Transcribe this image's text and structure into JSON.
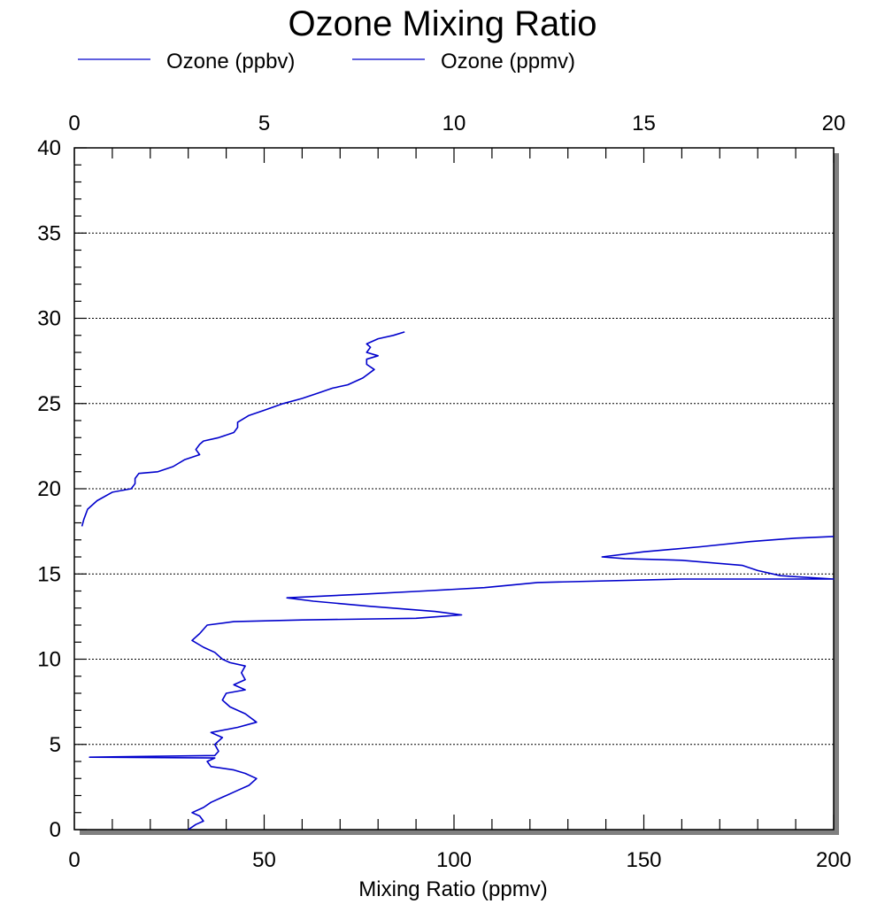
{
  "chart_data": {
    "type": "line",
    "title": "Ozone Mixing Ratio",
    "xlabel": "Mixing Ratio (ppmv)",
    "ylabel": "",
    "legend_placement": "top",
    "grid": "horizontal dotted",
    "bottom_axis": {
      "range": [
        0,
        200
      ],
      "ticks": [
        0,
        50,
        100,
        150,
        200
      ]
    },
    "top_axis": {
      "range": [
        0,
        20
      ],
      "ticks": [
        0,
        5,
        10,
        15,
        20
      ]
    },
    "y_axis": {
      "range": [
        0,
        40
      ],
      "ticks": [
        0,
        5,
        10,
        15,
        20,
        25,
        30,
        35,
        40
      ]
    },
    "series": [
      {
        "name": "Ozone (ppbv)",
        "axis": "bottom",
        "color": "#0000cc",
        "points": [
          [
            30,
            0
          ],
          [
            32,
            0.3
          ],
          [
            34,
            0.5
          ],
          [
            33,
            0.8
          ],
          [
            31,
            1.0
          ],
          [
            34,
            1.3
          ],
          [
            36,
            1.6
          ],
          [
            39,
            1.9
          ],
          [
            43,
            2.3
          ],
          [
            46,
            2.6
          ],
          [
            48,
            3.0
          ],
          [
            45,
            3.3
          ],
          [
            42,
            3.5
          ],
          [
            36,
            3.7
          ],
          [
            35,
            4.0
          ],
          [
            37,
            4.2
          ],
          [
            4,
            4.25
          ],
          [
            37,
            4.35
          ],
          [
            38,
            4.6
          ],
          [
            37,
            5.0
          ],
          [
            39,
            5.4
          ],
          [
            36,
            5.7
          ],
          [
            43,
            6.0
          ],
          [
            48,
            6.3
          ],
          [
            45,
            6.8
          ],
          [
            41,
            7.2
          ],
          [
            39,
            7.6
          ],
          [
            40,
            8.0
          ],
          [
            45,
            8.2
          ],
          [
            42,
            8.5
          ],
          [
            45,
            8.8
          ],
          [
            44,
            9.2
          ],
          [
            45,
            9.6
          ],
          [
            41,
            9.8
          ],
          [
            39,
            10.0
          ],
          [
            37,
            10.4
          ],
          [
            34,
            10.7
          ],
          [
            31,
            11.1
          ],
          [
            33,
            11.5
          ],
          [
            35,
            12.0
          ],
          [
            42,
            12.2
          ],
          [
            60,
            12.3
          ],
          [
            90,
            12.4
          ],
          [
            102,
            12.6
          ],
          [
            95,
            12.8
          ],
          [
            78,
            13.1
          ],
          [
            63,
            13.4
          ],
          [
            56,
            13.6
          ],
          [
            75,
            13.8
          ],
          [
            92,
            14.0
          ],
          [
            108,
            14.2
          ],
          [
            122,
            14.5
          ],
          [
            160,
            14.7
          ],
          [
            200,
            14.7
          ],
          [
            186,
            14.9
          ],
          [
            180,
            15.2
          ],
          [
            176,
            15.5
          ],
          [
            160,
            15.8
          ],
          [
            145,
            15.9
          ],
          [
            139,
            16.0
          ],
          [
            150,
            16.3
          ],
          [
            165,
            16.6
          ],
          [
            178,
            16.9
          ],
          [
            190,
            17.1
          ],
          [
            200,
            17.2
          ]
        ]
      },
      {
        "name": "Ozone (ppmv)",
        "axis": "top",
        "color": "#0000cc",
        "points": [
          [
            0.2,
            17.8
          ],
          [
            0.25,
            18.2
          ],
          [
            0.35,
            18.8
          ],
          [
            0.6,
            19.3
          ],
          [
            1.0,
            19.8
          ],
          [
            1.5,
            20.0
          ],
          [
            1.6,
            20.3
          ],
          [
            1.6,
            20.6
          ],
          [
            1.7,
            20.9
          ],
          [
            2.2,
            21.0
          ],
          [
            2.6,
            21.3
          ],
          [
            2.9,
            21.7
          ],
          [
            3.3,
            22.0
          ],
          [
            3.2,
            22.3
          ],
          [
            3.3,
            22.6
          ],
          [
            3.4,
            22.8
          ],
          [
            3.8,
            23.0
          ],
          [
            4.2,
            23.3
          ],
          [
            4.3,
            23.6
          ],
          [
            4.3,
            23.9
          ],
          [
            4.6,
            24.3
          ],
          [
            5.0,
            24.6
          ],
          [
            5.5,
            25.0
          ],
          [
            6.0,
            25.3
          ],
          [
            6.4,
            25.6
          ],
          [
            6.8,
            25.9
          ],
          [
            7.2,
            26.1
          ],
          [
            7.6,
            26.5
          ],
          [
            7.9,
            27.0
          ],
          [
            7.7,
            27.3
          ],
          [
            7.7,
            27.6
          ],
          [
            8.0,
            27.8
          ],
          [
            7.7,
            28.0
          ],
          [
            7.8,
            28.3
          ],
          [
            7.7,
            28.5
          ],
          [
            8.0,
            28.8
          ],
          [
            8.4,
            29.0
          ],
          [
            8.7,
            29.2
          ]
        ]
      }
    ]
  }
}
